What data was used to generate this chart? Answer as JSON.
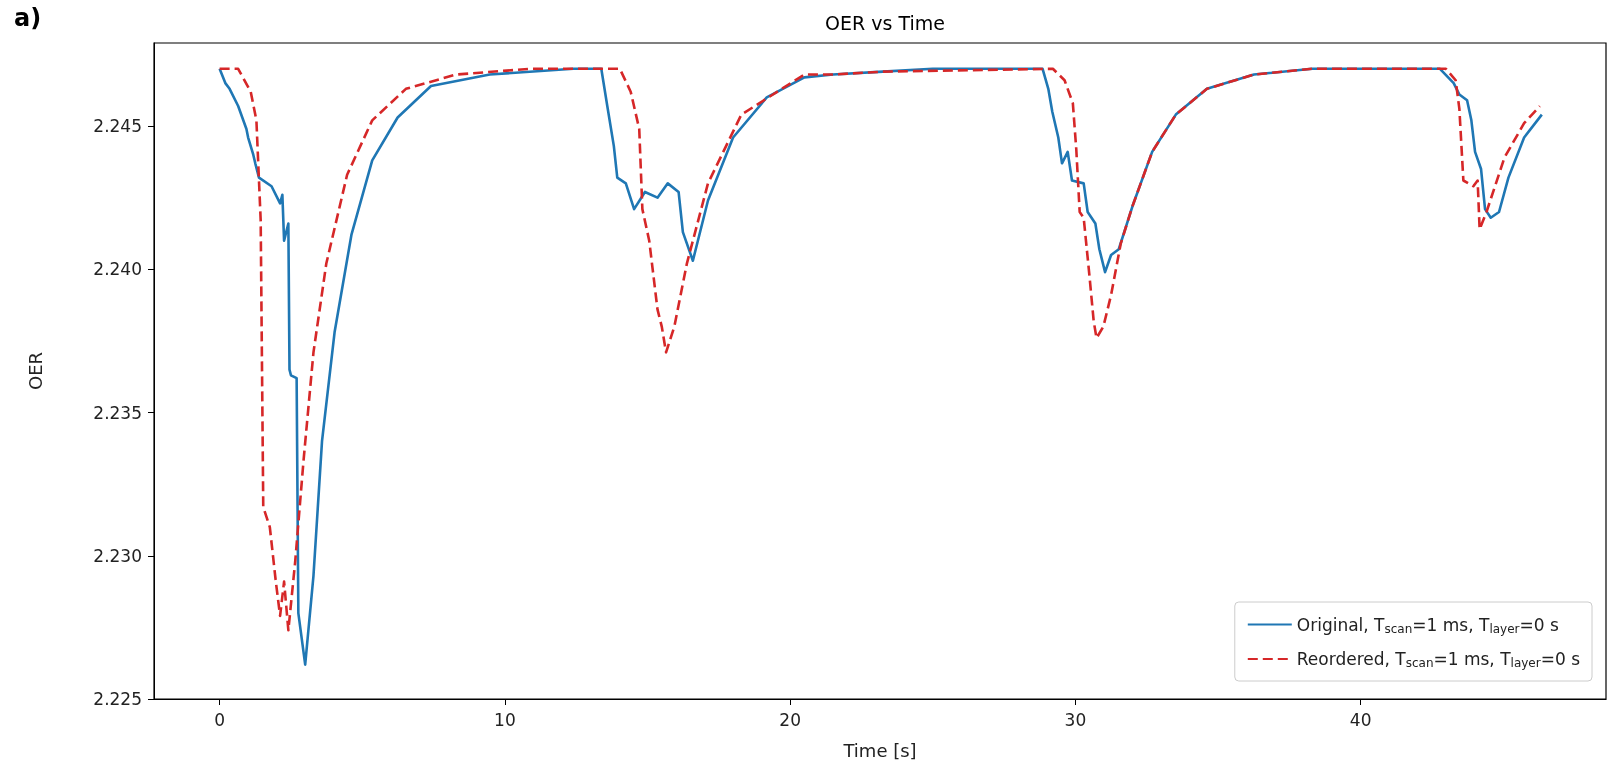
{
  "chart_data": {
    "type": "line",
    "title": "OER vs Time",
    "xlabel": "Time [s]",
    "ylabel": "OER",
    "annotations": [
      "a)"
    ],
    "xlim": [
      -2.3,
      48.6
    ],
    "xticks": [
      0,
      10,
      20,
      30,
      40
    ],
    "ylim": [
      2.225,
      2.2479
    ],
    "yticks": [
      {
        "value": 2.225,
        "label": "2.225"
      },
      {
        "value": 2.23,
        "label": "2.230"
      },
      2.235,
      {
        "value": 2.24,
        "label": "2.240"
      },
      2.245
    ],
    "grid": false,
    "legend": "bottom right",
    "marker": "none",
    "series": [
      {
        "name": "Original, T$_{scan}$=1 ms, T$_{layer}$=0 s",
        "color": "#1f77b4",
        "line_style": "solid",
        "x": [
          0,
          0.2,
          0.35,
          0.65,
          0.94,
          1.0,
          1.18,
          1.25,
          1.38,
          1.82,
          2.12,
          2.2,
          2.26,
          2.41,
          2.45,
          2.5,
          2.7,
          2.76,
          3.0,
          3.29,
          3.59,
          4.03,
          4.62,
          5.35,
          6.24,
          7.41,
          9.47,
          12.4,
          13.38,
          13.59,
          13.82,
          13.94,
          14.24,
          14.53,
          14.91,
          15.35,
          15.71,
          16.09,
          16.24,
          16.59,
          17.12,
          18.0,
          19.18,
          20.5,
          21.5,
          23.25,
          25.0,
          28.85,
          29.05,
          29.19,
          29.4,
          29.53,
          29.73,
          29.88,
          30.29,
          30.43,
          30.7,
          30.84,
          31.04,
          31.25,
          31.52,
          32.0,
          32.69,
          33.52,
          34.61,
          36.26,
          38.3,
          42.78,
          43.26,
          43.46,
          43.73,
          43.88,
          44.01,
          44.22,
          44.36,
          44.56,
          44.85,
          45.18,
          45.73,
          46.35
        ],
        "values": [
          2.247,
          2.2465,
          2.2463,
          2.2457,
          2.2449,
          2.2446,
          2.244,
          2.2437,
          2.2432,
          2.2429,
          2.2423,
          2.2426,
          2.241,
          2.2416,
          2.2365,
          2.2363,
          2.2362,
          2.228,
          2.2262,
          2.2293,
          2.234,
          2.2378,
          2.2412,
          2.2438,
          2.2453,
          2.2464,
          2.2468,
          2.247,
          2.247,
          2.2457,
          2.2443,
          2.2432,
          2.243,
          2.2421,
          2.2427,
          2.2425,
          2.243,
          2.2427,
          2.2413,
          2.2403,
          2.2424,
          2.2446,
          2.246,
          2.2467,
          2.2468,
          2.2469,
          2.247,
          2.247,
          2.2463,
          2.2455,
          2.2446,
          2.2437,
          2.2441,
          2.2431,
          2.243,
          2.242,
          2.2416,
          2.2407,
          2.2399,
          2.2405,
          2.2407,
          2.2422,
          2.2441,
          2.2454,
          2.2463,
          2.2468,
          2.247,
          2.247,
          2.2465,
          2.2461,
          2.2459,
          2.2452,
          2.2441,
          2.2435,
          2.2421,
          2.2418,
          2.242,
          2.2432,
          2.2446,
          2.2454
        ]
      },
      {
        "name": "Reordered, T$_{scan}$=1 ms, T$_{layer}$=0 s",
        "color": "#d62728",
        "line_style": "dashed",
        "x": [
          0,
          0.65,
          1.09,
          1.29,
          1.44,
          1.53,
          1.76,
          1.97,
          2.12,
          2.26,
          2.41,
          2.65,
          2.94,
          3.29,
          3.74,
          4.47,
          5.35,
          6.53,
          8.29,
          10.9,
          13.6,
          14.03,
          14.41,
          14.71,
          14.82,
          15.06,
          15.35,
          15.5,
          15.65,
          15.94,
          16.38,
          17.12,
          18.29,
          20.5,
          21.5,
          23.25,
          29.21,
          29.62,
          29.91,
          30.03,
          30.15,
          30.29,
          30.49,
          30.64,
          30.74,
          30.98,
          31.25,
          31.59,
          32.0,
          32.69,
          33.52,
          34.61,
          36.26,
          38.3,
          42.99,
          43.33,
          43.46,
          43.6,
          43.95,
          44.1,
          44.17,
          44.41,
          45.04,
          45.73,
          46.28
        ],
        "values": [
          2.247,
          2.247,
          2.2462,
          2.2452,
          2.2417,
          2.2317,
          2.231,
          2.2291,
          2.2279,
          2.2291,
          2.2274,
          2.2298,
          2.2333,
          2.2371,
          2.2402,
          2.2433,
          2.2452,
          2.2463,
          2.2468,
          2.247,
          2.247,
          2.247,
          2.2462,
          2.2449,
          2.2421,
          2.241,
          2.2386,
          2.238,
          2.2371,
          2.238,
          2.2402,
          2.243,
          2.2454,
          2.2468,
          2.2468,
          2.2469,
          2.247,
          2.2466,
          2.2458,
          2.2442,
          2.242,
          2.2418,
          2.2398,
          2.2382,
          2.2376,
          2.238,
          2.2391,
          2.2409,
          2.2422,
          2.2441,
          2.2454,
          2.2463,
          2.2468,
          2.247,
          2.247,
          2.2466,
          2.2456,
          2.2431,
          2.2429,
          2.2431,
          2.2414,
          2.242,
          2.2439,
          2.2451,
          2.2457
        ]
      }
    ]
  }
}
